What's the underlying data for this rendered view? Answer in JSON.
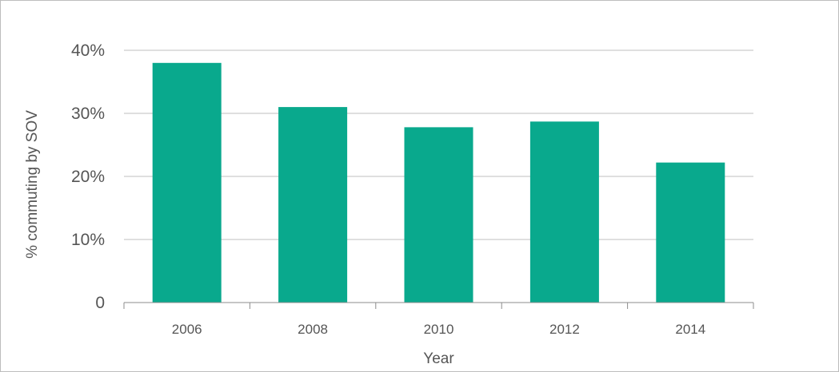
{
  "chart_data": {
    "type": "bar",
    "categories": [
      "2006",
      "2008",
      "2010",
      "2012",
      "2014"
    ],
    "values": [
      0.38,
      0.31,
      0.278,
      0.287,
      0.222
    ],
    "title": "",
    "xlabel": "Year",
    "ylabel": "% commuting by SOV",
    "ylim": [
      0,
      0.4
    ],
    "yticks": [
      {
        "value": 0,
        "label": "0"
      },
      {
        "value": 0.1,
        "label": "10%"
      },
      {
        "value": 0.2,
        "label": "20%"
      },
      {
        "value": 0.3,
        "label": "30%"
      },
      {
        "value": 0.4,
        "label": "40%"
      }
    ],
    "grid": true,
    "legend": "none",
    "bar_color": "#09a98d",
    "grid_color": "#bfbfbf",
    "axis_color": "#8c8c8c"
  }
}
